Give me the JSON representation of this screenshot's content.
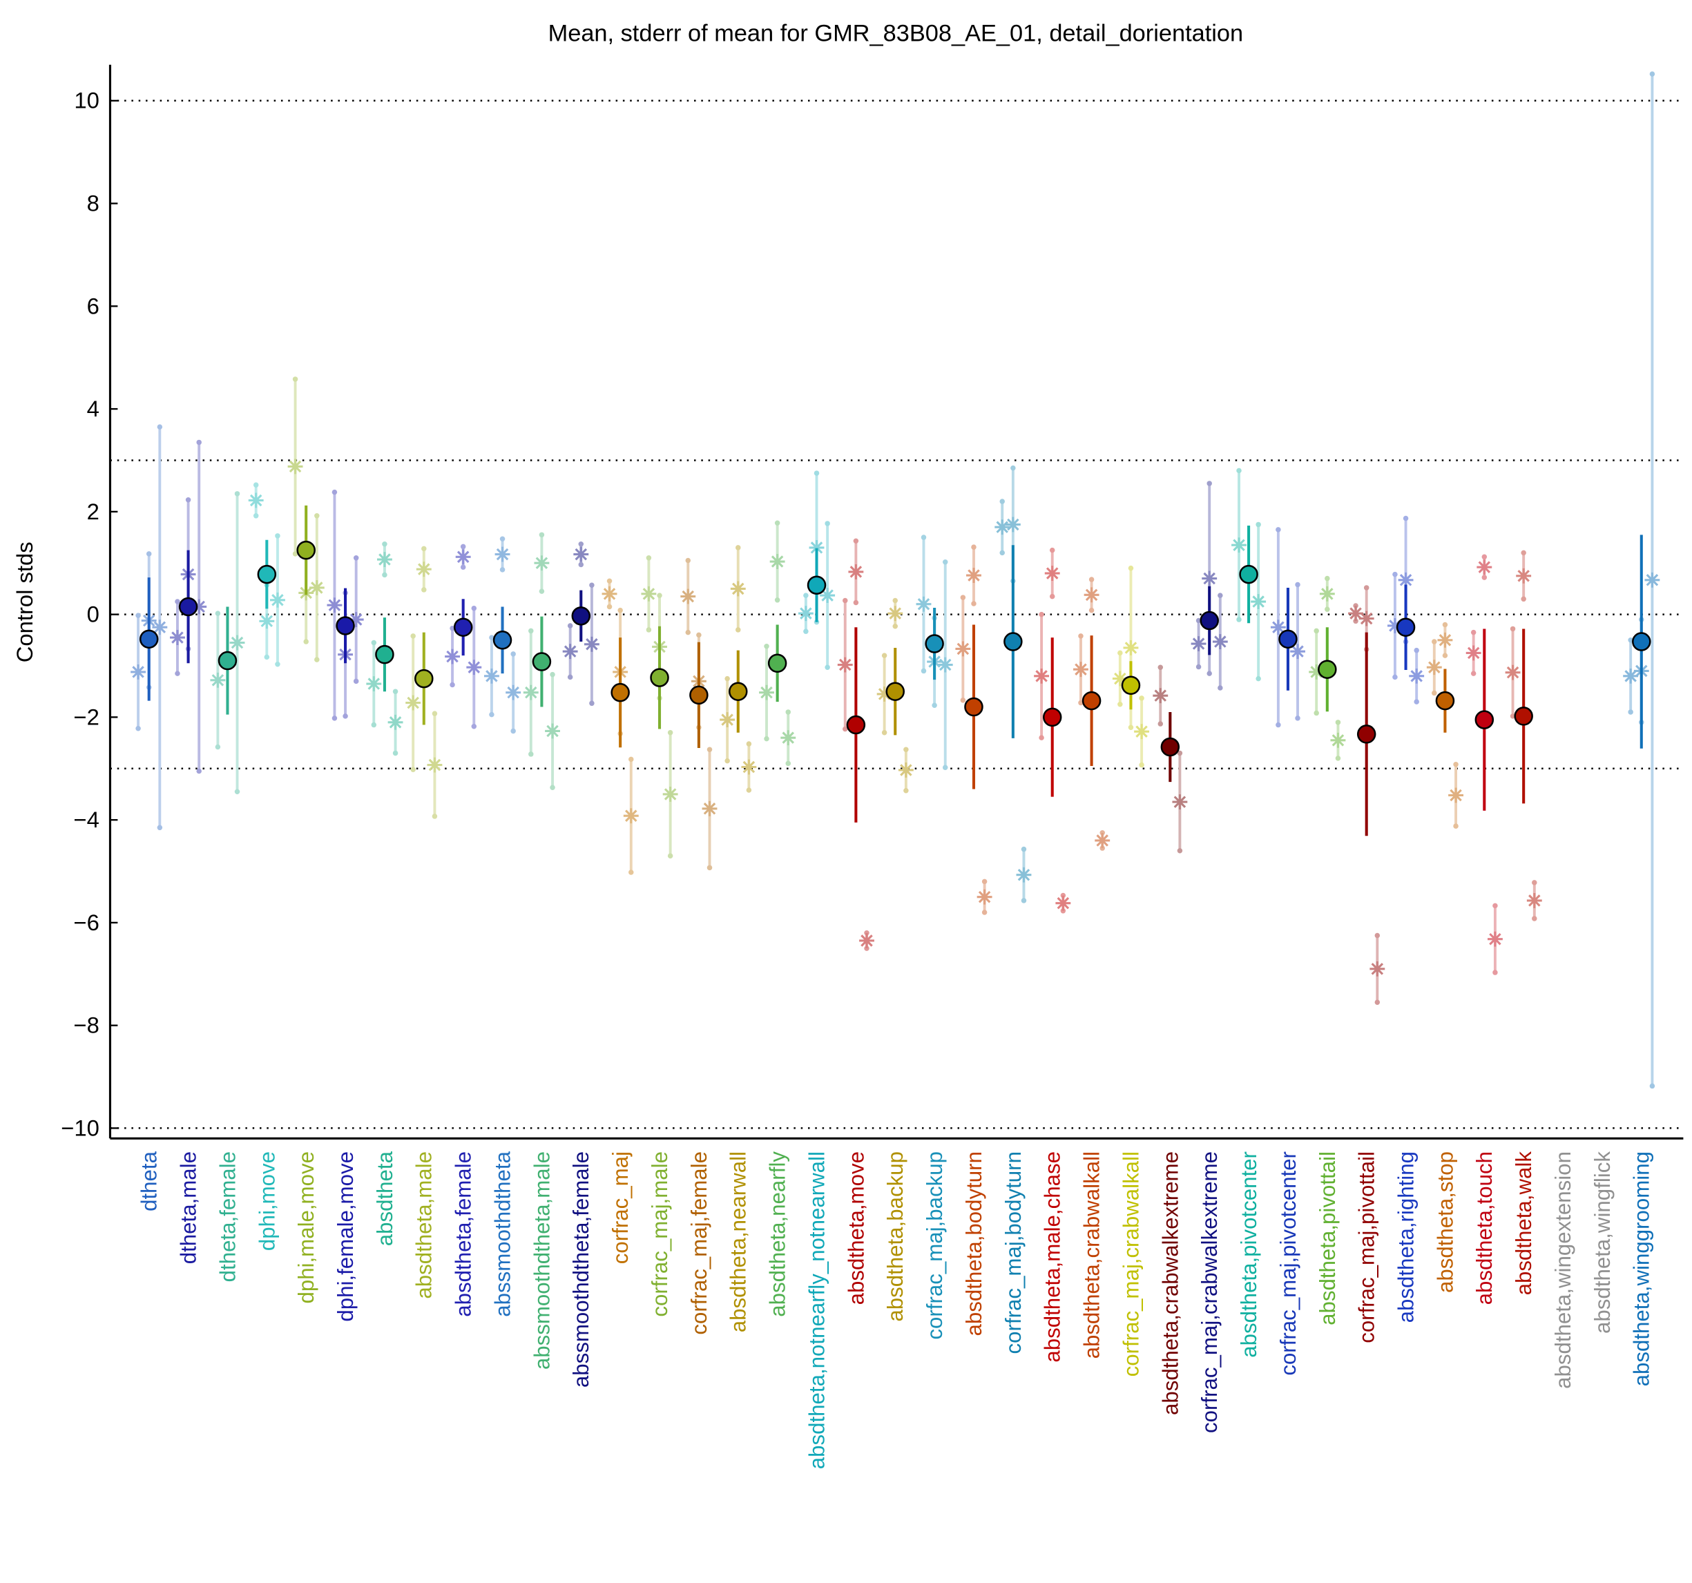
{
  "chart_data": {
    "type": "errorbar",
    "title": "Mean, stderr of mean for GMR_83B08_AE_01, detail_dorientation",
    "ylabel": "Control stds",
    "ylim": [
      -10.2,
      10.7
    ],
    "yticks": [
      {
        "value": -10,
        "label": "−10"
      },
      {
        "value": -8,
        "label": "−8"
      },
      {
        "value": -6,
        "label": "−6"
      },
      {
        "value": -4,
        "label": "−4"
      },
      {
        "value": -2,
        "label": "−2"
      },
      0,
      2,
      4,
      6,
      8,
      10
    ],
    "hlines": [
      -10,
      -3,
      0,
      3,
      10
    ],
    "categories": [
      "dtheta",
      "dtheta,male",
      "dtheta,female",
      "dphi,move",
      "dphi,male,move",
      "dphi,female,move",
      "absdtheta",
      "absdtheta,male",
      "absdtheta,female",
      "abssmoothdtheta",
      "abssmoothdtheta,male",
      "abssmoothdtheta,female",
      "corfrac_maj",
      "corfrac_maj,male",
      "corfrac_maj,female",
      "absdtheta,nearwall",
      "absdtheta,nearfly",
      "absdtheta,notnearfly_notnearwall",
      "absdtheta,move",
      "absdtheta,backup",
      "corfrac_maj,backup",
      "absdtheta,bodyturn",
      "corfrac_maj,bodyturn",
      "absdtheta,male,chase",
      "absdtheta,crabwalkall",
      "corfrac_maj,crabwalkall",
      "absdtheta,crabwalkextreme",
      "corfrac_maj,crabwalkextreme",
      "absdtheta,pivotcenter",
      "corfrac_maj,pivotcenter",
      "absdtheta,pivottail",
      "corfrac_maj,pivottail",
      "absdtheta,righting",
      "absdtheta,stop",
      "absdtheta,touch",
      "absdtheta,walk",
      "absdtheta,wingextension",
      "absdtheta,wingflick",
      "absdtheta,winggrooming"
    ],
    "colors": [
      "#1f5fbf",
      "#1a1aa0",
      "#30b090",
      "#20b8b8",
      "#90b020",
      "#1a1aa8",
      "#20b090",
      "#a0b020",
      "#2020b0",
      "#2070c0",
      "#40b070",
      "#101080",
      "#c07000",
      "#80b030",
      "#b06000",
      "#b09000",
      "#50b050",
      "#10a8b8",
      "#b00000",
      "#b09000",
      "#1890b8",
      "#c04000",
      "#1080b0",
      "#c00000",
      "#c04000",
      "#c0c000",
      "#700000",
      "#101080",
      "#10b0a0",
      "#1838b8",
      "#60b030",
      "#900000",
      "#1838c0",
      "#c06000",
      "#c00010",
      "#b01000",
      "#909090",
      "#909090",
      "#1070b8"
    ],
    "values": [
      -0.48,
      0.15,
      -0.9,
      0.78,
      1.25,
      -0.22,
      -0.78,
      -1.25,
      -0.25,
      -0.5,
      -0.92,
      -0.03,
      -1.52,
      -1.23,
      -1.57,
      -1.5,
      -0.95,
      0.57,
      -2.15,
      -1.5,
      -0.57,
      -1.8,
      -0.53,
      -2.0,
      -1.68,
      -1.38,
      -2.58,
      -0.12,
      0.78,
      -0.48,
      -1.07,
      -2.33,
      -0.25,
      -1.68,
      -2.05,
      -1.98,
      null,
      null,
      -0.53
    ],
    "errors": [
      1.2,
      1.1,
      1.05,
      0.67,
      0.87,
      0.73,
      0.72,
      0.9,
      0.55,
      0.65,
      0.88,
      0.5,
      1.07,
      1.0,
      1.03,
      0.8,
      0.75,
      0.72,
      1.9,
      0.85,
      0.7,
      1.6,
      1.88,
      1.55,
      1.27,
      0.47,
      0.68,
      0.67,
      0.95,
      1.0,
      0.82,
      1.98,
      0.83,
      0.62,
      1.77,
      1.7,
      null,
      null,
      2.08
    ],
    "replicates": [
      [
        {
          "value": -1.12,
          "error": 1.1
        },
        {
          "value": -0.12,
          "error": 1.3
        },
        {
          "value": -0.25,
          "error": 3.9
        }
      ],
      [
        {
          "value": -0.45,
          "error": 0.7
        },
        {
          "value": 0.78,
          "error": 1.45
        },
        {
          "value": 0.15,
          "error": 3.2
        }
      ],
      [
        {
          "value": -1.28,
          "error": 1.3
        },
        {
          "value": -0.55,
          "error": 2.9
        }
      ],
      [
        {
          "value": 2.22,
          "error": 0.3
        },
        {
          "value": -0.13,
          "error": 0.7
        },
        {
          "value": 0.28,
          "error": 1.25
        }
      ],
      [
        {
          "value": 2.88,
          "error": 1.7
        },
        {
          "value": 0.42,
          "error": 0.95
        },
        {
          "value": 0.52,
          "error": 1.4
        }
      ],
      [
        {
          "value": 0.18,
          "error": 2.2
        },
        {
          "value": -0.78,
          "error": 1.2
        },
        {
          "value": -0.1,
          "error": 1.2
        }
      ],
      [
        {
          "value": -1.35,
          "error": 0.8
        },
        {
          "value": 1.07,
          "error": 0.3
        },
        {
          "value": -2.1,
          "error": 0.6
        }
      ],
      [
        {
          "value": -1.72,
          "error": 1.3
        },
        {
          "value": 0.88,
          "error": 0.4
        },
        {
          "value": -2.93,
          "error": 1.0
        }
      ],
      [
        {
          "value": -0.82,
          "error": 0.55
        },
        {
          "value": 1.12,
          "error": 0.2
        },
        {
          "value": -1.03,
          "error": 1.15
        }
      ],
      [
        {
          "value": -1.2,
          "error": 0.75
        },
        {
          "value": 1.17,
          "error": 0.3
        },
        {
          "value": -1.52,
          "error": 0.75
        }
      ],
      [
        {
          "value": -1.52,
          "error": 1.2
        },
        {
          "value": 1.0,
          "error": 0.55
        },
        {
          "value": -2.27,
          "error": 1.1
        }
      ],
      [
        {
          "value": -0.72,
          "error": 0.5
        },
        {
          "value": 1.17,
          "error": 0.2
        },
        {
          "value": -0.58,
          "error": 1.15
        }
      ],
      [
        {
          "value": 0.4,
          "error": 0.25
        },
        {
          "value": -1.12,
          "error": 1.2
        },
        {
          "value": -3.92,
          "error": 1.1
        }
      ],
      [
        {
          "value": 0.4,
          "error": 0.7
        },
        {
          "value": -0.63,
          "error": 1.0
        },
        {
          "value": -3.5,
          "error": 1.2
        }
      ],
      [
        {
          "value": 0.35,
          "error": 0.7
        },
        {
          "value": -1.3,
          "error": 0.9
        },
        {
          "value": -3.78,
          "error": 1.15
        }
      ],
      [
        {
          "value": -2.05,
          "error": 0.8
        },
        {
          "value": 0.5,
          "error": 0.8
        },
        {
          "value": -2.97,
          "error": 0.45
        }
      ],
      [
        {
          "value": -1.52,
          "error": 0.9
        },
        {
          "value": 1.03,
          "error": 0.75
        },
        {
          "value": -2.4,
          "error": 0.5
        }
      ],
      [
        {
          "value": 0.02,
          "error": 0.35
        },
        {
          "value": 1.3,
          "error": 1.45
        },
        {
          "value": 0.37,
          "error": 1.4
        }
      ],
      [
        {
          "value": -0.98,
          "error": 1.25
        },
        {
          "value": 0.83,
          "error": 0.6
        },
        {
          "value": -6.35,
          "error": 0.15
        }
      ],
      [
        {
          "value": -1.55,
          "error": 0.75
        },
        {
          "value": 0.02,
          "error": 0.25
        },
        {
          "value": -3.03,
          "error": 0.4
        }
      ],
      [
        {
          "value": 0.2,
          "error": 1.3
        },
        {
          "value": -0.92,
          "error": 0.85
        },
        {
          "value": -0.98,
          "error": 2.0
        }
      ],
      [
        {
          "value": -0.67,
          "error": 1.0
        },
        {
          "value": 0.76,
          "error": 0.55
        },
        {
          "value": -5.5,
          "error": 0.3
        }
      ],
      [
        {
          "value": 1.7,
          "error": 0.5
        },
        {
          "value": 1.75,
          "error": 1.1
        },
        {
          "value": -5.07,
          "error": 0.5
        }
      ],
      [
        {
          "value": -1.2,
          "error": 1.2
        },
        {
          "value": 0.8,
          "error": 0.45
        },
        {
          "value": -5.62,
          "error": 0.15
        }
      ],
      [
        {
          "value": -1.07,
          "error": 0.65
        },
        {
          "value": 0.38,
          "error": 0.3
        },
        {
          "value": -4.4,
          "error": 0.15
        }
      ],
      [
        {
          "value": -1.25,
          "error": 0.5
        },
        {
          "value": -0.65,
          "error": 1.55
        },
        {
          "value": -2.28,
          "error": 0.65
        }
      ],
      [
        {
          "value": -1.58,
          "error": 0.55
        },
        {
          "value": -3.65,
          "error": 0.95
        }
      ],
      [
        {
          "value": -0.57,
          "error": 0.45
        },
        {
          "value": 0.7,
          "error": 1.85
        },
        {
          "value": -0.53,
          "error": 0.9
        }
      ],
      [
        {
          "value": 1.35,
          "error": 1.45
        },
        {
          "value": 0.25,
          "error": 1.5
        }
      ],
      [
        {
          "value": -0.25,
          "error": 1.9
        },
        {
          "value": -0.72,
          "error": 1.3
        }
      ],
      [
        {
          "value": -1.12,
          "error": 0.8
        },
        {
          "value": 0.4,
          "error": 0.3
        },
        {
          "value": -2.45,
          "error": 0.35
        }
      ],
      [
        {
          "value": 0.02,
          "error": 0.15
        },
        {
          "value": -0.08,
          "error": 0.6
        },
        {
          "value": -6.9,
          "error": 0.65
        }
      ],
      [
        {
          "value": -0.22,
          "error": 1.0
        },
        {
          "value": 0.67,
          "error": 1.2
        },
        {
          "value": -1.2,
          "error": 0.5
        }
      ],
      [
        {
          "value": -1.03,
          "error": 0.5
        },
        {
          "value": -0.5,
          "error": 0.3
        },
        {
          "value": -3.52,
          "error": 0.6
        }
      ],
      [
        {
          "value": -0.75,
          "error": 0.4
        },
        {
          "value": 0.92,
          "error": 0.2
        },
        {
          "value": -6.32,
          "error": 0.65
        }
      ],
      [
        {
          "value": -1.13,
          "error": 0.85
        },
        {
          "value": 0.75,
          "error": 0.45
        },
        {
          "value": -5.57,
          "error": 0.35
        }
      ],
      [],
      [],
      [
        {
          "value": -1.2,
          "error": 0.7
        },
        {
          "value": -1.1,
          "error": 1.0
        },
        {
          "value": 0.67,
          "error": 9.85
        }
      ]
    ]
  }
}
